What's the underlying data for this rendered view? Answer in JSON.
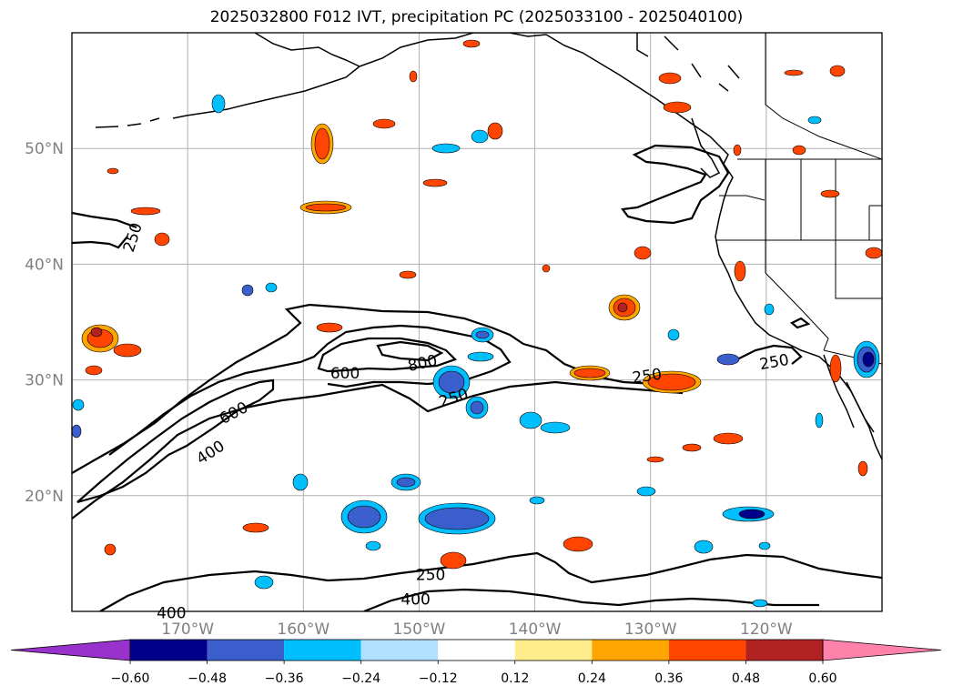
{
  "title": "2025032800 F012 IVT, precipitation PC (2025033100 - 2025040100)",
  "map": {
    "lon_range": [
      -180,
      -110
    ],
    "lat_range": [
      10,
      60
    ],
    "lat_labels": [
      {
        "lat": 50,
        "text": "50°N"
      },
      {
        "lat": 40,
        "text": "40°N"
      },
      {
        "lat": 30,
        "text": "30°N"
      },
      {
        "lat": 20,
        "text": "20°N"
      }
    ],
    "lon_labels": [
      {
        "lon": -170,
        "text": "170°W"
      },
      {
        "lon": -160,
        "text": "160°W"
      },
      {
        "lon": -150,
        "text": "150°W"
      },
      {
        "lon": -140,
        "text": "140°W"
      },
      {
        "lon": -130,
        "text": "130°W"
      },
      {
        "lon": -120,
        "text": "120°W"
      }
    ],
    "gridlines": true,
    "contour_labels": [
      {
        "text": "250",
        "lon": -174.7,
        "lat": 42.3,
        "rotate": -72
      },
      {
        "text": "600",
        "lon": -156.4,
        "lat": 30.5,
        "rotate": 0
      },
      {
        "text": "800",
        "lon": -149.7,
        "lat": 31.4,
        "rotate": -12
      },
      {
        "text": "250",
        "lon": -147.0,
        "lat": 28.4,
        "rotate": -18
      },
      {
        "text": "600",
        "lon": -166.0,
        "lat": 27.1,
        "rotate": -28
      },
      {
        "text": "400",
        "lon": -168.0,
        "lat": 23.7,
        "rotate": -33
      },
      {
        "text": "250",
        "lon": -130.3,
        "lat": 30.3,
        "rotate": -8
      },
      {
        "text": "250",
        "lon": -119.3,
        "lat": 31.5,
        "rotate": -10
      },
      {
        "text": "250",
        "lon": -149.0,
        "lat": 13.1,
        "rotate": 0
      },
      {
        "text": "400",
        "lon": -150.3,
        "lat": 11.0,
        "rotate": 0
      },
      {
        "text": "400",
        "lon": -171.4,
        "lat": 9.8,
        "rotate": 0
      }
    ]
  },
  "colorbar": {
    "colors": [
      "#9932cc",
      "#00008b",
      "#3a5fcd",
      "#00bfff",
      "#b0e2ff",
      "#ffffff",
      "#ffec8b",
      "#ffa500",
      "#ff4500",
      "#b22222",
      "#ff82ab"
    ],
    "tick_labels": [
      "−0.60",
      "−0.48",
      "−0.36",
      "−0.24",
      "−0.12",
      "0.12",
      "0.24",
      "0.36",
      "0.48",
      "0.60"
    ]
  }
}
